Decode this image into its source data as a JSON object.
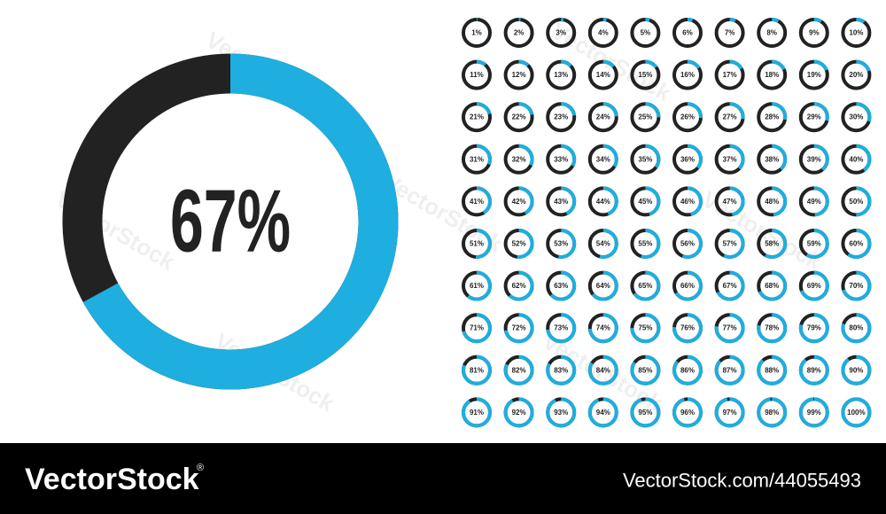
{
  "chart_data": [
    {
      "type": "donut",
      "values": [
        67
      ],
      "value_labels": [
        "67%"
      ],
      "color": "#1eaee0",
      "track_color": "#222222"
    },
    {
      "type": "donut-grid",
      "color": "#1eaee0",
      "track_color": "#222222",
      "columns": 10,
      "values": [
        1,
        2,
        3,
        4,
        5,
        6,
        7,
        8,
        9,
        10,
        11,
        12,
        13,
        14,
        15,
        16,
        17,
        18,
        19,
        20,
        21,
        22,
        23,
        24,
        25,
        26,
        27,
        28,
        29,
        30,
        31,
        32,
        33,
        34,
        35,
        36,
        37,
        38,
        39,
        40,
        41,
        42,
        43,
        44,
        45,
        46,
        47,
        48,
        49,
        50,
        51,
        52,
        53,
        54,
        55,
        56,
        57,
        58,
        59,
        60,
        61,
        62,
        63,
        64,
        65,
        66,
        67,
        68,
        69,
        70,
        71,
        72,
        73,
        74,
        75,
        76,
        77,
        78,
        79,
        80,
        81,
        82,
        83,
        84,
        85,
        86,
        87,
        88,
        89,
        90,
        91,
        92,
        93,
        94,
        95,
        96,
        97,
        98,
        99,
        100
      ],
      "value_labels": [
        "1%",
        "2%",
        "3%",
        "4%",
        "5%",
        "6%",
        "7%",
        "8%",
        "9%",
        "10%",
        "11%",
        "12%",
        "13%",
        "14%",
        "15%",
        "16%",
        "17%",
        "18%",
        "19%",
        "20%",
        "21%",
        "22%",
        "23%",
        "24%",
        "25%",
        "26%",
        "27%",
        "28%",
        "29%",
        "30%",
        "31%",
        "32%",
        "33%",
        "34%",
        "35%",
        "36%",
        "37%",
        "38%",
        "39%",
        "40%",
        "41%",
        "42%",
        "43%",
        "44%",
        "45%",
        "46%",
        "47%",
        "48%",
        "49%",
        "50%",
        "51%",
        "52%",
        "53%",
        "54%",
        "55%",
        "56%",
        "57%",
        "58%",
        "59%",
        "60%",
        "61%",
        "62%",
        "63%",
        "64%",
        "65%",
        "66%",
        "67%",
        "68%",
        "69%",
        "70%",
        "71%",
        "72%",
        "73%",
        "74%",
        "75%",
        "76%",
        "77%",
        "78%",
        "79%",
        "80%",
        "81%",
        "82%",
        "83%",
        "84%",
        "85%",
        "86%",
        "87%",
        "88%",
        "89%",
        "90%",
        "91%",
        "92%",
        "93%",
        "94%",
        "95%",
        "96%",
        "97%",
        "98%",
        "99%",
        "100%"
      ]
    }
  ],
  "watermark": "VectorStock",
  "footer": {
    "logo": "VectorStock",
    "registered": "®",
    "url": "VectorStock.com/44055493"
  }
}
